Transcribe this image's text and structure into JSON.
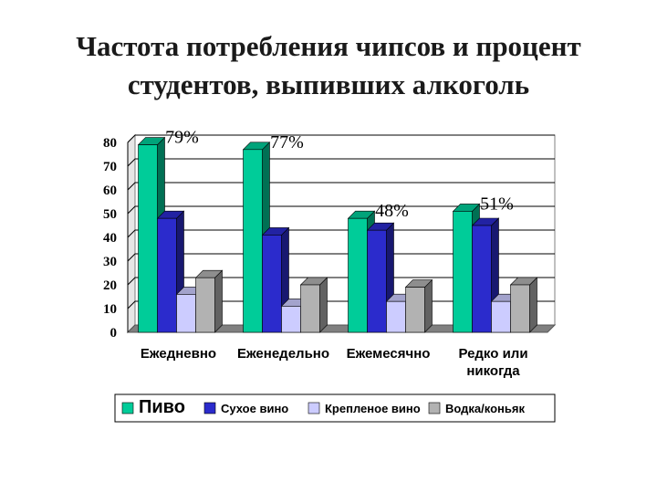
{
  "title_lines": [
    "Частота потребления чипсов и процент",
    "студентов, выпивших алкоголь"
  ],
  "chart_data": {
    "type": "bar",
    "three_d": true,
    "title": "",
    "xlabel": "",
    "ylabel": "",
    "ylim": [
      0,
      80
    ],
    "yticks": [
      0,
      10,
      20,
      30,
      40,
      50,
      60,
      70,
      80
    ],
    "grid": true,
    "legend_position": "bottom",
    "categories": [
      [
        "Ежедневно"
      ],
      [
        "Еженедельно"
      ],
      [
        "Ежемесячно"
      ],
      [
        "Редко или",
        "никогда"
      ]
    ],
    "series": [
      {
        "name": "Пиво",
        "values": [
          79,
          77,
          48,
          51
        ],
        "color": "#00cc99"
      },
      {
        "name": "Сухое вино",
        "values": [
          48,
          41,
          43,
          45
        ],
        "color": "#2b2bcc"
      },
      {
        "name": "Крепленое вино",
        "values": [
          16,
          11,
          13,
          13
        ],
        "color": "#ccccff"
      },
      {
        "name": "Водка/коньяк",
        "values": [
          23,
          20,
          19,
          20
        ],
        "color": "#b2b2b2"
      }
    ],
    "annotations": [
      "79%",
      "77%",
      "48%",
      "51%"
    ]
  }
}
